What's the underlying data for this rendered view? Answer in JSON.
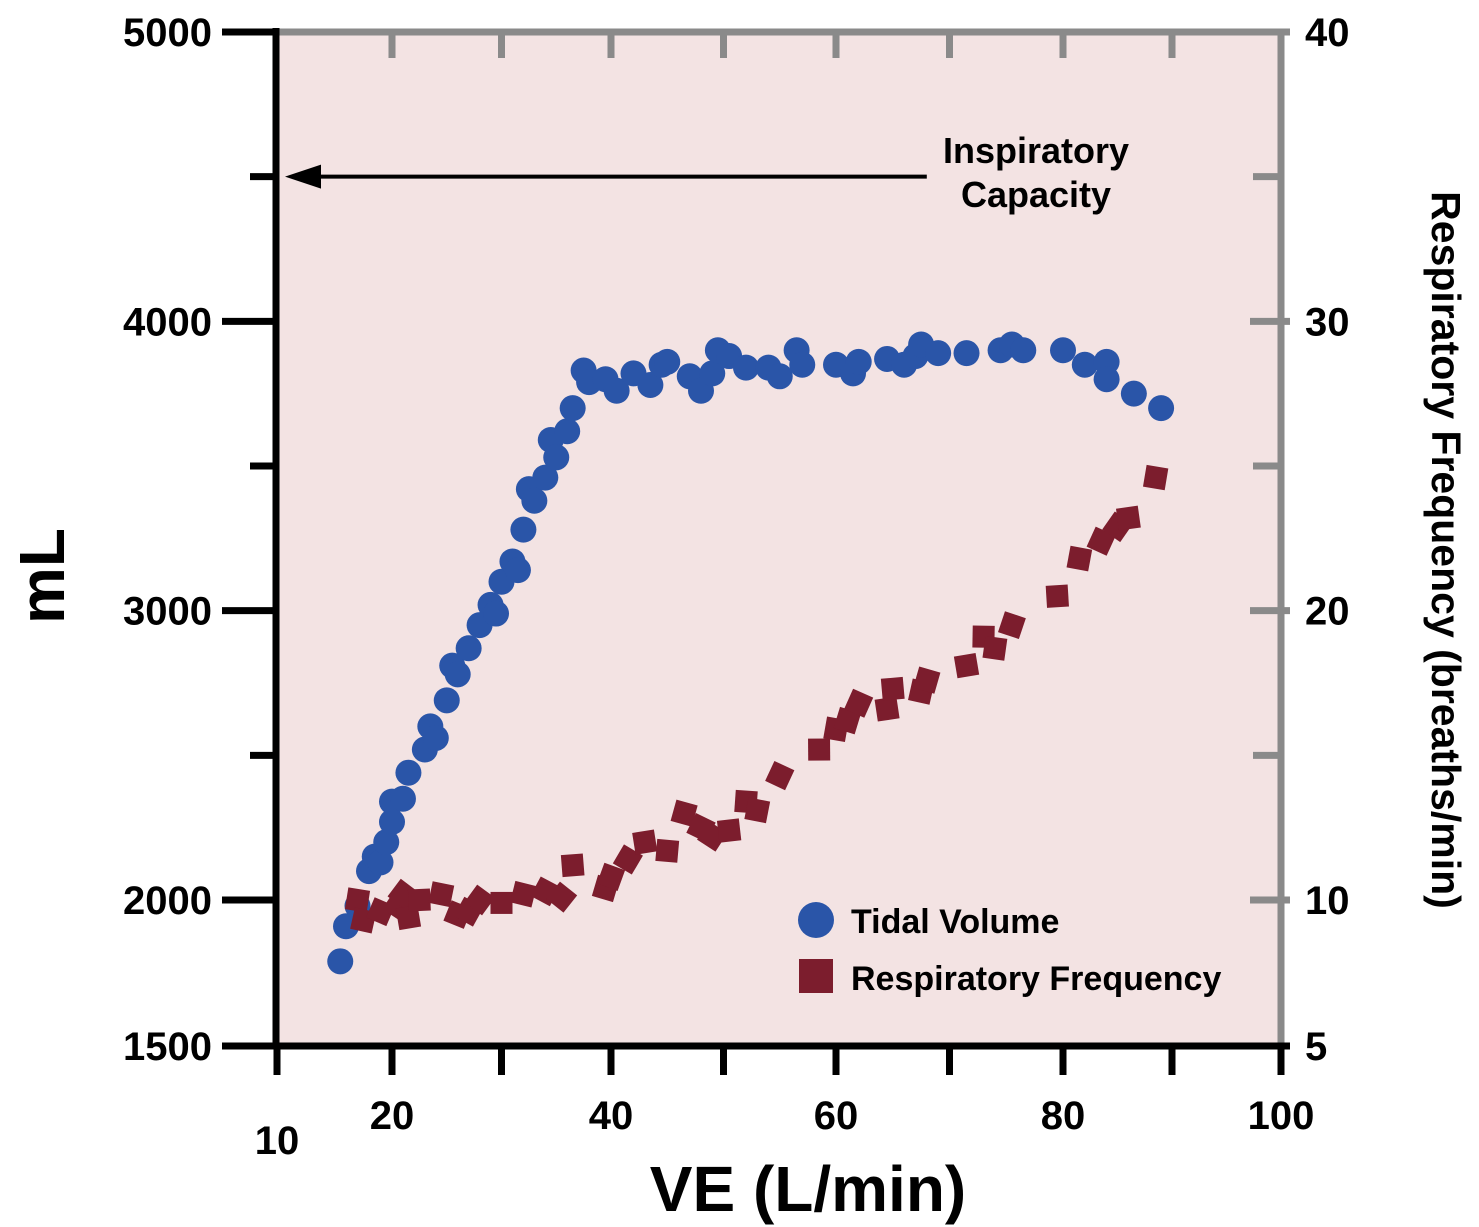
{
  "chart_data": {
    "type": "scatter",
    "title": "",
    "xlabel": "VE (L/min)",
    "ylabel_left": "mL",
    "ylabel_right": "Respiratory Frequency (breaths/min)",
    "xlim": [
      10,
      100
    ],
    "ylim_left": [
      1500,
      5000
    ],
    "ylim_right": [
      5,
      40
    ],
    "x_ticks": [
      "10",
      "20",
      "40",
      "60",
      "80",
      "100"
    ],
    "y_left_ticks": [
      "1500",
      "2000",
      "3000",
      "4000",
      "5000"
    ],
    "y_right_ticks": [
      "5",
      "10",
      "20",
      "30",
      "40"
    ],
    "background": "#f3e3e3",
    "annotation": {
      "line1": "Inspiratory",
      "line2": "Capacity",
      "y": 4500,
      "x_from": 68,
      "x_to": 10
    },
    "legend": {
      "position": "bottom-right",
      "entries": [
        "Tidal Volume",
        "Respiratory Frequency"
      ]
    },
    "series": [
      {
        "name": "Tidal Volume",
        "axis": "left",
        "marker": "circle",
        "color": "#2a55a8",
        "points": [
          [
            15.5,
            1790
          ],
          [
            16.0,
            1910
          ],
          [
            17.0,
            1980
          ],
          [
            18.0,
            2100
          ],
          [
            18.5,
            2150
          ],
          [
            19.0,
            2130
          ],
          [
            19.5,
            2200
          ],
          [
            20.0,
            2270
          ],
          [
            20.0,
            2340
          ],
          [
            21.0,
            2350
          ],
          [
            21.5,
            2440
          ],
          [
            23.0,
            2520
          ],
          [
            23.5,
            2600
          ],
          [
            24.0,
            2560
          ],
          [
            25.0,
            2690
          ],
          [
            25.5,
            2810
          ],
          [
            26.0,
            2780
          ],
          [
            27.0,
            2870
          ],
          [
            28.0,
            2950
          ],
          [
            29.0,
            3020
          ],
          [
            29.5,
            2990
          ],
          [
            30.0,
            3100
          ],
          [
            31.0,
            3170
          ],
          [
            31.5,
            3140
          ],
          [
            32.0,
            3280
          ],
          [
            32.5,
            3420
          ],
          [
            33.0,
            3380
          ],
          [
            34.0,
            3460
          ],
          [
            34.5,
            3590
          ],
          [
            35.0,
            3530
          ],
          [
            36.0,
            3620
          ],
          [
            36.5,
            3700
          ],
          [
            37.5,
            3830
          ],
          [
            38.0,
            3790
          ],
          [
            39.5,
            3800
          ],
          [
            40.5,
            3760
          ],
          [
            42.0,
            3820
          ],
          [
            43.5,
            3780
          ],
          [
            44.5,
            3850
          ],
          [
            45.0,
            3860
          ],
          [
            47.0,
            3810
          ],
          [
            48.0,
            3760
          ],
          [
            49.0,
            3820
          ],
          [
            49.5,
            3900
          ],
          [
            50.5,
            3880
          ],
          [
            52.0,
            3840
          ],
          [
            54.0,
            3840
          ],
          [
            55.0,
            3810
          ],
          [
            56.5,
            3900
          ],
          [
            57.0,
            3850
          ],
          [
            60.0,
            3850
          ],
          [
            61.5,
            3820
          ],
          [
            62.0,
            3860
          ],
          [
            64.5,
            3870
          ],
          [
            66.0,
            3850
          ],
          [
            67.0,
            3880
          ],
          [
            67.5,
            3920
          ],
          [
            69.0,
            3890
          ],
          [
            71.5,
            3890
          ],
          [
            74.5,
            3900
          ],
          [
            75.5,
            3920
          ],
          [
            76.5,
            3900
          ],
          [
            80.0,
            3900
          ],
          [
            82.0,
            3850
          ],
          [
            84.0,
            3860
          ],
          [
            84.0,
            3800
          ],
          [
            86.5,
            3750
          ],
          [
            89.0,
            3700
          ]
        ]
      },
      {
        "name": "Respiratory Frequency",
        "axis": "right",
        "marker": "square",
        "color": "#7c1d2d",
        "points": [
          [
            17.0,
            10.0
          ],
          [
            17.5,
            9.3
          ],
          [
            19.0,
            9.6
          ],
          [
            20.5,
            9.8
          ],
          [
            21.0,
            10.2
          ],
          [
            21.5,
            9.4
          ],
          [
            22.5,
            10.0
          ],
          [
            24.5,
            10.2
          ],
          [
            26.0,
            9.5
          ],
          [
            27.0,
            9.6
          ],
          [
            28.0,
            10.0
          ],
          [
            30.0,
            9.9
          ],
          [
            32.0,
            10.2
          ],
          [
            34.0,
            10.3
          ],
          [
            35.5,
            10.1
          ],
          [
            36.5,
            11.2
          ],
          [
            39.5,
            10.4
          ],
          [
            40.0,
            10.8
          ],
          [
            41.5,
            11.4
          ],
          [
            43.0,
            12.0
          ],
          [
            45.0,
            11.7
          ],
          [
            46.5,
            13.0
          ],
          [
            48.0,
            12.5
          ],
          [
            49.0,
            12.2
          ],
          [
            50.5,
            12.4
          ],
          [
            52.0,
            13.4
          ],
          [
            53.0,
            13.1
          ],
          [
            55.0,
            14.3
          ],
          [
            58.5,
            15.2
          ],
          [
            60.0,
            15.9
          ],
          [
            61.0,
            16.2
          ],
          [
            62.0,
            16.8
          ],
          [
            64.5,
            16.6
          ],
          [
            65.0,
            17.3
          ],
          [
            67.5,
            17.2
          ],
          [
            68.0,
            17.6
          ],
          [
            71.5,
            18.1
          ],
          [
            73.0,
            19.1
          ],
          [
            74.0,
            18.7
          ],
          [
            75.5,
            19.5
          ],
          [
            79.5,
            20.5
          ],
          [
            81.5,
            21.8
          ],
          [
            83.5,
            22.4
          ],
          [
            85.0,
            22.9
          ],
          [
            86.0,
            23.2
          ],
          [
            88.5,
            24.6
          ]
        ]
      }
    ]
  }
}
